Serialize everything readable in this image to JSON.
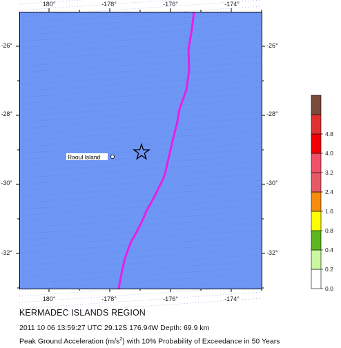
{
  "map": {
    "title": "KERMADEC ISLANDS REGION",
    "event_line": "2011 10 06 13:59:27 UTC 29.12S 176.94W Depth: 69.9 km",
    "pga_before_unit": "Peak Ground Acceleration (m/s",
    "pga_unit_power": "2",
    "pga_after_unit": ") with 10% Probability of Exceedance in 50 Years",
    "lon_labels": [
      "180°",
      "-178°",
      "-176°",
      "-174°"
    ],
    "lat_labels": [
      "-26°",
      "-28°",
      "-30°",
      "-32°"
    ],
    "place_label": "Raoul Island",
    "epicenter": {
      "lat": -29.12,
      "lon": -176.94
    },
    "raoul_island": {
      "lat": -29.27,
      "lon": -177.9
    },
    "colors": {
      "ocean": "#6e96f4",
      "plate_boundary": "#e81ee8",
      "dots": "#4a66d8"
    }
  },
  "legend": {
    "labels": [
      "0.0",
      "0.2",
      "0.4",
      "0.8",
      "1.6",
      "2.4",
      "3.2",
      "4.0",
      "4.8"
    ],
    "colors": [
      "#ffffff",
      "#cbf7a0",
      "#5cb81e",
      "#ffff00",
      "#f58c0c",
      "#e65a66",
      "#f0506a",
      "#f00000",
      "#e03030",
      "#7a4a3a"
    ]
  }
}
